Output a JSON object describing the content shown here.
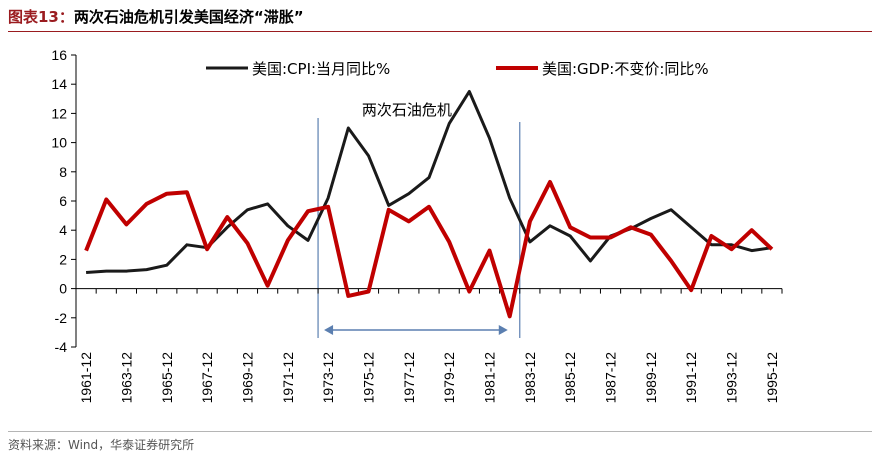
{
  "figure": {
    "label": "图表13：",
    "title": "两次石油危机引发美国经济“滞胀”",
    "source": "资料来源：Wind，华泰证券研究所"
  },
  "colors": {
    "cpi": "#1a1a1a",
    "gdp": "#c00000",
    "annotation": "#5b7fb0",
    "axis": "#000000",
    "title_accent": "#9a1b1f"
  },
  "chart_data": {
    "type": "line",
    "title": "",
    "xlabel": "",
    "ylabel": "",
    "ylim": [
      -4,
      16
    ],
    "yticks": [
      -4,
      -2,
      0,
      2,
      4,
      6,
      8,
      10,
      12,
      14,
      16
    ],
    "grid": false,
    "legend": "top",
    "x": [
      "1961-12",
      "1962-12",
      "1963-12",
      "1964-12",
      "1965-12",
      "1966-12",
      "1967-12",
      "1968-12",
      "1969-12",
      "1970-12",
      "1971-12",
      "1972-12",
      "1973-12",
      "1974-12",
      "1975-12",
      "1976-12",
      "1977-12",
      "1978-12",
      "1979-12",
      "1980-12",
      "1981-12",
      "1982-12",
      "1983-12",
      "1984-12",
      "1985-12",
      "1986-12",
      "1987-12",
      "1988-12",
      "1989-12",
      "1990-12",
      "1991-12",
      "1992-12",
      "1993-12",
      "1994-12",
      "1995-12"
    ],
    "xtick_labels": [
      "1961-12",
      "1963-12",
      "1965-12",
      "1967-12",
      "1969-12",
      "1971-12",
      "1973-12",
      "1975-12",
      "1977-12",
      "1979-12",
      "1981-12",
      "1983-12",
      "1985-12",
      "1987-12",
      "1989-12",
      "1991-12",
      "1993-12",
      "1995-12"
    ],
    "series": [
      {
        "name": "美国:CPI:当月同比%",
        "color": "#1a1a1a",
        "values": [
          1.1,
          1.2,
          1.2,
          1.3,
          1.6,
          3.0,
          2.8,
          4.2,
          5.4,
          5.8,
          4.3,
          3.3,
          6.2,
          11.0,
          9.1,
          5.7,
          6.5,
          7.6,
          11.3,
          13.5,
          10.3,
          6.2,
          3.2,
          4.3,
          3.6,
          1.9,
          3.6,
          4.1,
          4.8,
          5.4,
          4.2,
          3.0,
          3.0,
          2.6,
          2.8
        ]
      },
      {
        "name": "美国:GDP:不变价:同比%",
        "color": "#c00000",
        "values": [
          2.6,
          6.1,
          4.4,
          5.8,
          6.5,
          6.6,
          2.7,
          4.9,
          3.1,
          0.2,
          3.3,
          5.3,
          5.6,
          -0.5,
          -0.2,
          5.4,
          4.6,
          5.6,
          3.2,
          -0.2,
          2.6,
          -1.9,
          4.6,
          7.3,
          4.2,
          3.5,
          3.5,
          4.2,
          3.7,
          1.9,
          -0.1,
          3.6,
          2.7,
          4.0,
          2.7
        ]
      }
    ],
    "annotations": [
      {
        "text": "两次石油危机",
        "from": "1973-12",
        "to": "1982-12"
      }
    ]
  }
}
